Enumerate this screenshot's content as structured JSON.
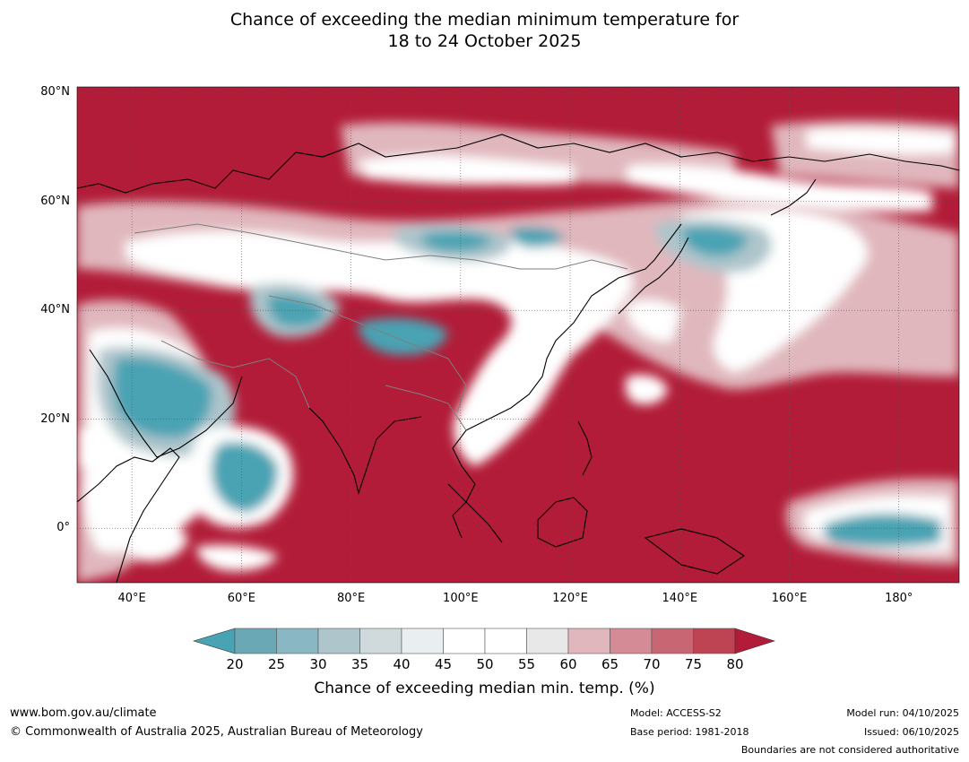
{
  "title": {
    "line1": "Chance of exceeding the median minimum temperature for",
    "line2": "18 to 24 October 2025"
  },
  "map": {
    "lat_labels": [
      "80°N",
      "60°N",
      "40°N",
      "20°N",
      "0°"
    ],
    "lon_labels": [
      "40°E",
      "60°E",
      "80°E",
      "100°E",
      "120°E",
      "140°E",
      "160°E",
      "180°"
    ],
    "lat_values": [
      80,
      60,
      40,
      20,
      0
    ],
    "lon_values": [
      40,
      60,
      80,
      100,
      120,
      140,
      160,
      180
    ],
    "extent": {
      "lon_min": 30,
      "lon_max": 191,
      "lat_min": -10,
      "lat_max": 81
    }
  },
  "colorbar": {
    "ticks": [
      "20",
      "25",
      "30",
      "35",
      "40",
      "45",
      "50",
      "55",
      "60",
      "65",
      "70",
      "75",
      "80"
    ],
    "colors": [
      "#4aa3b3",
      "#6aa8b6",
      "#89b8c4",
      "#adc5cb",
      "#d0d9dc",
      "#e9eff1",
      "#ffffff",
      "#ffffff",
      "#e8e8e8",
      "#e0b7bd",
      "#d48b95",
      "#c96674",
      "#be4353",
      "#b21c38"
    ],
    "label": "Chance of exceeding median min. temp. (%)"
  },
  "footer": {
    "url": "www.bom.gov.au/climate",
    "copyright": "© Commonwealth of Australia 2025, Australian Bureau of Meteorology",
    "model": "Model: ACCESS-S2",
    "base_period": "Base period: 1981-2018",
    "model_run": "Model run: 04/10/2025",
    "issued": "Issued: 06/10/2025",
    "disclaimer": "Boundaries are not considered authoritative"
  },
  "palette": {
    "dark_red": "#b21c38",
    "mid_red": "#c96674",
    "pink": "#d48b95",
    "light_pink": "#e0b7bd",
    "white": "#ffffff",
    "light_grey": "#e9eff1",
    "grey_blue": "#adc5cb",
    "teal": "#4aa3b3"
  }
}
